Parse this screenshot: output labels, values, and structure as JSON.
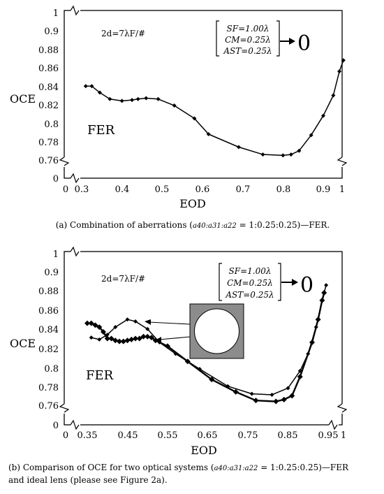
{
  "chart_data": [
    {
      "type": "line",
      "panel": "a",
      "xlabel": "EOD",
      "ylabel": "OCE",
      "xlim": [
        0,
        1
      ],
      "ylim": [
        0,
        1
      ],
      "axis_break": "both",
      "grid": false,
      "x_ticks": [
        "0",
        "0.3",
        "0.4",
        "0.5",
        "0.6",
        "0.7",
        "0.8",
        "0.9",
        "1"
      ],
      "y_ticks": [
        "0",
        "0.76",
        "0.78",
        "0.8",
        "0.82",
        "0.84",
        "0.86",
        "0.88",
        "0.9",
        "1"
      ],
      "annotations": {
        "distance_label": "2d=7λF/#",
        "series_label": "FER",
        "params": [
          "SF=1.00λ",
          "CM=0.25λ",
          "AST=0.25λ"
        ],
        "arrow_target": "0"
      },
      "series": [
        {
          "marker": "diamond",
          "points": [
            [
              0.31,
              0.84
            ],
            [
              0.325,
              0.84
            ],
            [
              0.345,
              0.833
            ],
            [
              0.37,
              0.826
            ],
            [
              0.4,
              0.824
            ],
            [
              0.425,
              0.825
            ],
            [
              0.44,
              0.826
            ],
            [
              0.46,
              0.827
            ],
            [
              0.49,
              0.826
            ],
            [
              0.53,
              0.819
            ],
            [
              0.58,
              0.805
            ],
            [
              0.615,
              0.788
            ],
            [
              0.69,
              0.774
            ],
            [
              0.75,
              0.766
            ],
            [
              0.8,
              0.765
            ],
            [
              0.82,
              0.766
            ],
            [
              0.84,
              0.77
            ],
            [
              0.87,
              0.787
            ],
            [
              0.9,
              0.808
            ],
            [
              0.925,
              0.83
            ],
            [
              0.94,
              0.856
            ],
            [
              0.95,
              0.868
            ]
          ]
        }
      ],
      "caption": {
        "prefix": "(a)  Combination of aberrations (",
        "ratio_vars": "a40:a31:a22",
        "ratio_value": " = 1:0.25:0.25)—FER."
      }
    },
    {
      "type": "line",
      "panel": "b",
      "xlabel": "EOD",
      "ylabel": "OCE",
      "xlim": [
        0,
        1
      ],
      "ylim": [
        0,
        1
      ],
      "axis_break": "both",
      "grid": false,
      "x_ticks": [
        "0",
        "0.35",
        "0.45",
        "0.55",
        "0.65",
        "0.75",
        "0.85",
        "0.95",
        "1"
      ],
      "y_ticks": [
        "0",
        "0.76",
        "0.78",
        "0.8",
        "0.82",
        "0.84",
        "0.86",
        "0.88",
        "0.9",
        "1"
      ],
      "annotations": {
        "distance_label": "2d=7λF/#",
        "series_label": "FER",
        "params": [
          "SF=1.00λ",
          "CM=0.25λ",
          "AST=0.25λ"
        ],
        "arrow_target": "0"
      },
      "series": [
        {
          "marker": "diamond-bold",
          "points": [
            [
              0.35,
              0.846
            ],
            [
              0.36,
              0.846
            ],
            [
              0.37,
              0.844
            ],
            [
              0.38,
              0.842
            ],
            [
              0.39,
              0.837
            ],
            [
              0.4,
              0.83
            ],
            [
              0.41,
              0.83
            ],
            [
              0.42,
              0.828
            ],
            [
              0.43,
              0.827
            ],
            [
              0.44,
              0.827
            ],
            [
              0.45,
              0.828
            ],
            [
              0.46,
              0.829
            ],
            [
              0.47,
              0.83
            ],
            [
              0.48,
              0.83
            ],
            [
              0.49,
              0.832
            ],
            [
              0.5,
              0.832
            ],
            [
              0.51,
              0.831
            ],
            [
              0.52,
              0.828
            ],
            [
              0.55,
              0.822
            ],
            [
              0.6,
              0.806
            ],
            [
              0.66,
              0.787
            ],
            [
              0.72,
              0.774
            ],
            [
              0.77,
              0.765
            ],
            [
              0.82,
              0.764
            ],
            [
              0.84,
              0.766
            ],
            [
              0.86,
              0.77
            ],
            [
              0.88,
              0.79
            ],
            [
              0.91,
              0.826
            ],
            [
              0.925,
              0.85
            ],
            [
              0.935,
              0.87
            ],
            [
              0.94,
              0.878
            ]
          ]
        },
        {
          "marker": "diamond",
          "points": [
            [
              0.36,
              0.831
            ],
            [
              0.38,
              0.829
            ],
            [
              0.4,
              0.834
            ],
            [
              0.42,
              0.842
            ],
            [
              0.45,
              0.85
            ],
            [
              0.47,
              0.848
            ],
            [
              0.5,
              0.84
            ],
            [
              0.53,
              0.826
            ],
            [
              0.57,
              0.814
            ],
            [
              0.63,
              0.798
            ],
            [
              0.7,
              0.78
            ],
            [
              0.76,
              0.772
            ],
            [
              0.81,
              0.771
            ],
            [
              0.85,
              0.778
            ],
            [
              0.88,
              0.796
            ],
            [
              0.9,
              0.814
            ],
            [
              0.92,
              0.842
            ],
            [
              0.935,
              0.87
            ],
            [
              0.945,
              0.886
            ]
          ]
        }
      ],
      "caption": {
        "prefix": "(b)  Comparison of OCE for two optical systems (",
        "ratio_vars": "a40:a31:a22",
        "ratio_value": " = 1:0.25:0.25)—FER",
        "line2": "and ideal lens (please see Figure 2a)."
      }
    }
  ]
}
